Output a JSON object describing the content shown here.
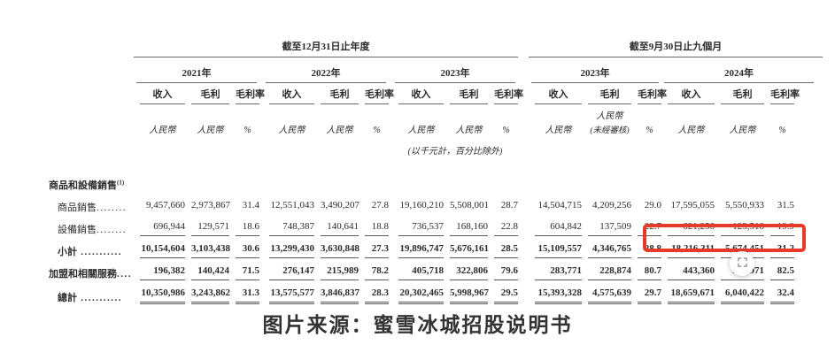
{
  "table": {
    "period_headers": [
      {
        "label": "截至12月31日止年度"
      },
      {
        "label": "截至9月30日止九個月"
      }
    ],
    "year_headers": [
      "2021年",
      "2022年",
      "2023年",
      "2023年",
      "2024年"
    ],
    "column_headers": [
      "收入",
      "毛利",
      "毛利率"
    ],
    "units": {
      "currency": "人民幣",
      "percent": "%",
      "unaudited": "(未經審核)",
      "scale_note": "(以千元計，百分比除外)"
    },
    "rows": [
      {
        "type": "section",
        "label": "商品和設備銷售",
        "sup": "(1)"
      },
      {
        "type": "data",
        "label": "商品銷售",
        "dots": "........",
        "bold": false,
        "indent": true,
        "underline": "none",
        "values": [
          "9,457,660",
          "2,973,867",
          "31.4",
          "12,551,043",
          "3,490,207",
          "27.8",
          "19,160,210",
          "5,508,001",
          "28.7",
          "14,504,715",
          "4,209,256",
          "29.0",
          "17,595,055",
          "5,550,933",
          "31.5"
        ]
      },
      {
        "type": "data",
        "label": "設備銷售",
        "dots": "........",
        "bold": false,
        "indent": true,
        "underline": "single",
        "values": [
          "696,944",
          "129,571",
          "18.6",
          "748,387",
          "140,641",
          "18.8",
          "736,537",
          "168,160",
          "22.8",
          "604,842",
          "137,509",
          "22.7",
          "621,256",
          "123,518",
          "19.9"
        ]
      },
      {
        "type": "data",
        "label": "小計",
        "dots": " ...........",
        "bold": true,
        "indent": true,
        "underline": "single",
        "values": [
          "10,154,604",
          "3,103,438",
          "30.6",
          "13,299,430",
          "3,630,848",
          "27.3",
          "19,896,747",
          "5,676,161",
          "28.5",
          "15,109,557",
          "4,346,765",
          "28.8",
          "18,216,311",
          "5,674,451",
          "31.2"
        ]
      },
      {
        "type": "data",
        "label": "加盟和相關服務",
        "dots": "....",
        "bold": true,
        "indent": false,
        "underline": "single",
        "values": [
          "196,382",
          "140,424",
          "71.5",
          "276,147",
          "215,989",
          "78.2",
          "405,718",
          "322,806",
          "79.6",
          "283,771",
          "228,874",
          "80.7",
          "443,360",
          "365,971",
          "82.5"
        ]
      },
      {
        "type": "data",
        "label": "總計",
        "dots": " ...........",
        "bold": true,
        "indent": true,
        "underline": "double",
        "values": [
          "10,350,986",
          "3,243,862",
          "31.3",
          "13,575,577",
          "3,846,837",
          "28.3",
          "20,302,465",
          "5,998,967",
          "29.5",
          "15,393,328",
          "4,575,639",
          "29.7",
          "18,659,671",
          "6,040,422",
          "32.4"
        ]
      }
    ]
  },
  "annotations": {
    "highlight_color": "#e73b2a"
  },
  "caption": {
    "text": "图片来源：蜜雪冰城招股说明书"
  }
}
